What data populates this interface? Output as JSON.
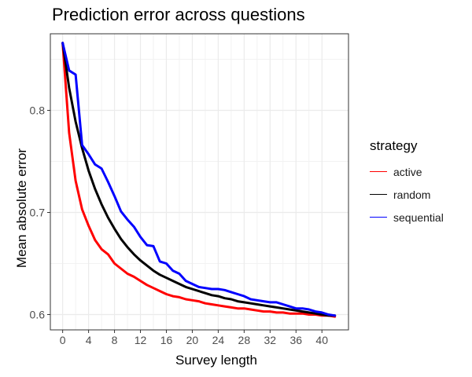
{
  "chart_data": {
    "type": "line",
    "title": "Prediction error across questions",
    "xlabel": "Survey length",
    "ylabel": "Mean absolute error",
    "xlim": [
      -1.9,
      44.1
    ],
    "ylim": [
      0.585,
      0.875
    ],
    "xticks": [
      0,
      4,
      8,
      12,
      16,
      20,
      24,
      28,
      32,
      36,
      40
    ],
    "yticks": [
      0.6,
      0.7,
      0.8
    ],
    "grid": true,
    "legend": {
      "title": "strategy",
      "position": "right"
    },
    "series": [
      {
        "name": "active",
        "color": "#ff0000",
        "x": [
          0,
          1,
          2,
          3,
          4,
          5,
          6,
          7,
          8,
          9,
          10,
          11,
          12,
          13,
          14,
          15,
          16,
          17,
          18,
          19,
          20,
          21,
          22,
          23,
          24,
          25,
          26,
          27,
          28,
          29,
          30,
          31,
          32,
          33,
          34,
          35,
          36,
          37,
          38,
          39,
          40,
          41,
          42
        ],
        "y": [
          0.866,
          0.778,
          0.731,
          0.703,
          0.687,
          0.673,
          0.664,
          0.659,
          0.65,
          0.645,
          0.64,
          0.637,
          0.633,
          0.629,
          0.626,
          0.623,
          0.62,
          0.618,
          0.617,
          0.615,
          0.614,
          0.613,
          0.611,
          0.61,
          0.609,
          0.608,
          0.607,
          0.606,
          0.606,
          0.605,
          0.604,
          0.603,
          0.603,
          0.602,
          0.602,
          0.601,
          0.601,
          0.601,
          0.6,
          0.6,
          0.599,
          0.599,
          0.598
        ]
      },
      {
        "name": "random",
        "color": "#000000",
        "x": [
          0,
          1,
          2,
          3,
          4,
          5,
          6,
          7,
          8,
          9,
          10,
          11,
          12,
          13,
          14,
          15,
          16,
          17,
          18,
          19,
          20,
          21,
          22,
          23,
          24,
          25,
          26,
          27,
          28,
          29,
          30,
          31,
          32,
          33,
          34,
          35,
          36,
          37,
          38,
          39,
          40,
          41,
          42
        ],
        "y": [
          0.866,
          0.822,
          0.789,
          0.763,
          0.741,
          0.723,
          0.708,
          0.695,
          0.684,
          0.674,
          0.666,
          0.659,
          0.653,
          0.648,
          0.643,
          0.639,
          0.636,
          0.633,
          0.63,
          0.627,
          0.625,
          0.623,
          0.621,
          0.619,
          0.618,
          0.616,
          0.615,
          0.613,
          0.612,
          0.611,
          0.61,
          0.609,
          0.608,
          0.607,
          0.606,
          0.605,
          0.604,
          0.603,
          0.602,
          0.601,
          0.6,
          0.599,
          0.599
        ]
      },
      {
        "name": "sequential",
        "color": "#0000ff",
        "x": [
          0,
          1,
          2,
          3,
          4,
          5,
          6,
          7,
          8,
          9,
          10,
          11,
          12,
          13,
          14,
          15,
          16,
          17,
          18,
          19,
          20,
          21,
          22,
          23,
          24,
          25,
          26,
          27,
          28,
          29,
          30,
          31,
          32,
          33,
          34,
          35,
          36,
          37,
          38,
          39,
          40,
          41,
          42
        ],
        "y": [
          0.866,
          0.839,
          0.835,
          0.766,
          0.757,
          0.747,
          0.743,
          0.73,
          0.716,
          0.701,
          0.693,
          0.686,
          0.676,
          0.668,
          0.667,
          0.652,
          0.65,
          0.643,
          0.64,
          0.633,
          0.63,
          0.627,
          0.626,
          0.625,
          0.625,
          0.624,
          0.622,
          0.62,
          0.618,
          0.615,
          0.614,
          0.613,
          0.612,
          0.612,
          0.61,
          0.608,
          0.606,
          0.606,
          0.605,
          0.603,
          0.602,
          0.6,
          0.599
        ]
      }
    ]
  }
}
